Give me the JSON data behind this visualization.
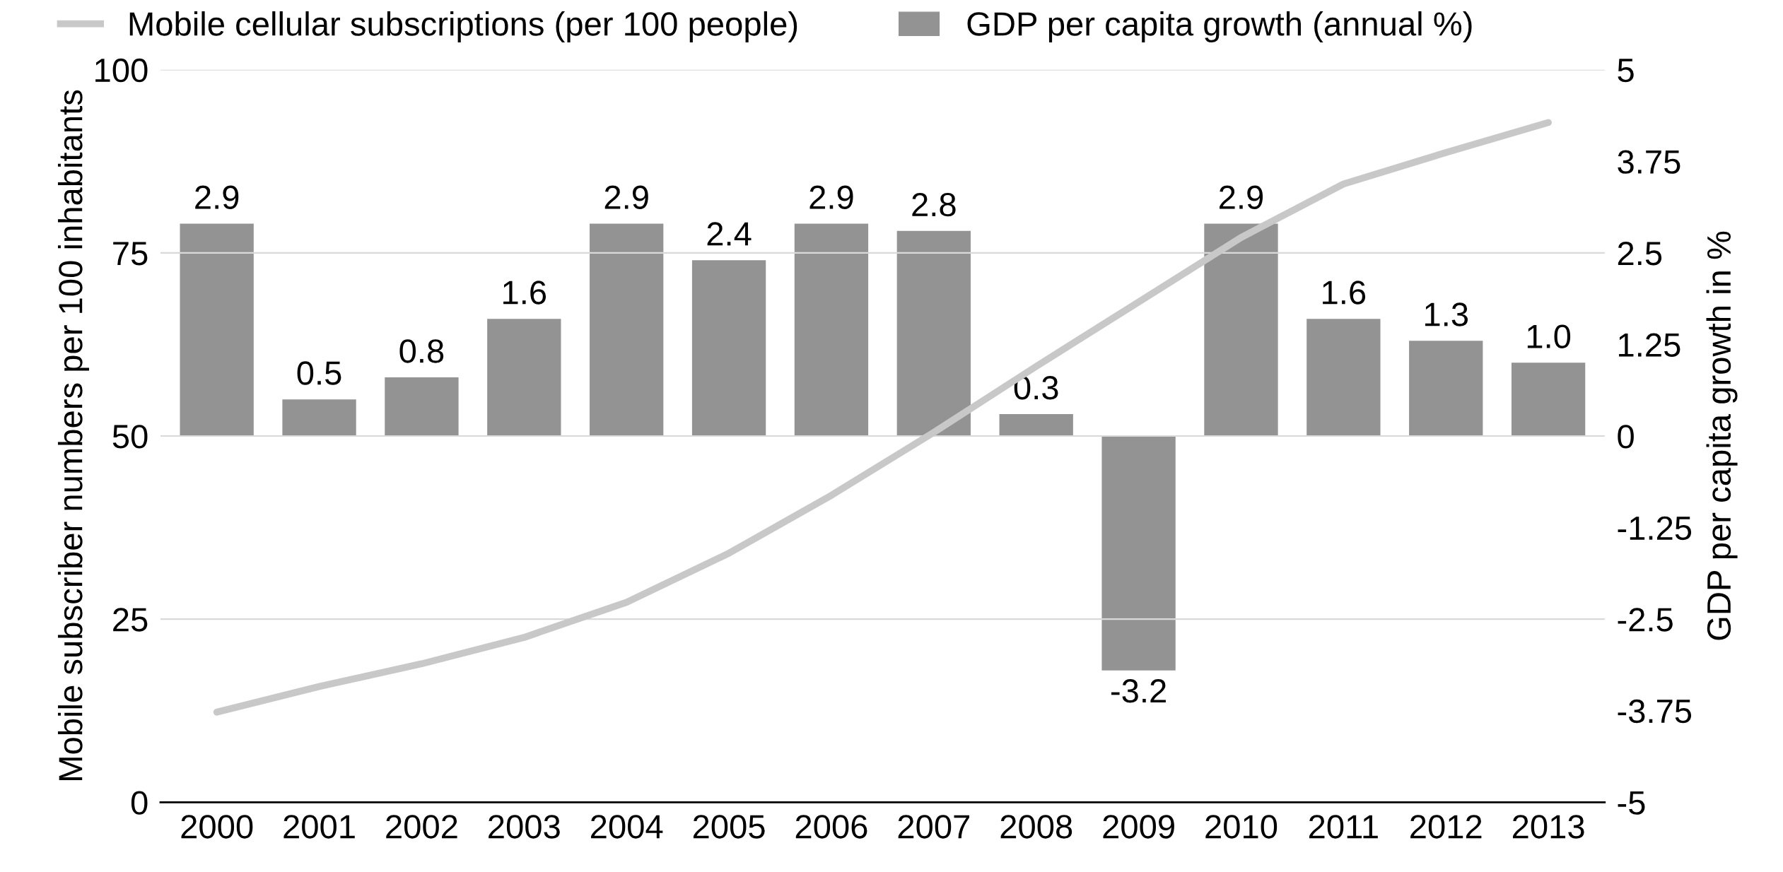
{
  "chart_data": {
    "type": "bar",
    "categories": [
      "2000",
      "2001",
      "2002",
      "2003",
      "2004",
      "2005",
      "2006",
      "2007",
      "2008",
      "2009",
      "2010",
      "2011",
      "2012",
      "2013"
    ],
    "ylabel": "Mobile subscriber numbers per 100 inhabitants",
    "y2label": "GDP per capita growth in %",
    "series": [
      {
        "name": "Mobile cellular subscriptions (per 100 people)",
        "type": "line",
        "color": "#c8c8c8",
        "values": [
          12.3,
          15.8,
          18.9,
          22.5,
          27.3,
          34.0,
          41.9,
          50.5,
          59.5,
          68.3,
          77.1,
          84.4,
          88.7,
          92.8
        ]
      },
      {
        "name": "GDP per capita growth (annual %)",
        "axis": "y2",
        "color": "#939393",
        "values": [
          2.9,
          0.5,
          0.8,
          1.6,
          2.9,
          2.4,
          2.9,
          2.8,
          0.3,
          -3.2,
          2.9,
          1.6,
          1.3,
          1.0
        ],
        "value_labels": [
          "2.9",
          "0.5",
          "0.8",
          "1.6",
          "2.9",
          "2.4",
          "2.9",
          "2.8",
          "0.3",
          "-3.2",
          "2.9",
          "1.6",
          "1.3",
          "1.0"
        ]
      }
    ],
    "ylim": [
      0,
      100
    ],
    "yticks": [
      0,
      25,
      50,
      75,
      100
    ],
    "y2lim": [
      -5,
      5
    ],
    "y2ticks": [
      -5,
      -3.75,
      -2.5,
      -1.25,
      0,
      1.25,
      2.5,
      3.75,
      5
    ],
    "grid": "y",
    "legend": "top",
    "line_style": "solid",
    "marker": "none"
  }
}
